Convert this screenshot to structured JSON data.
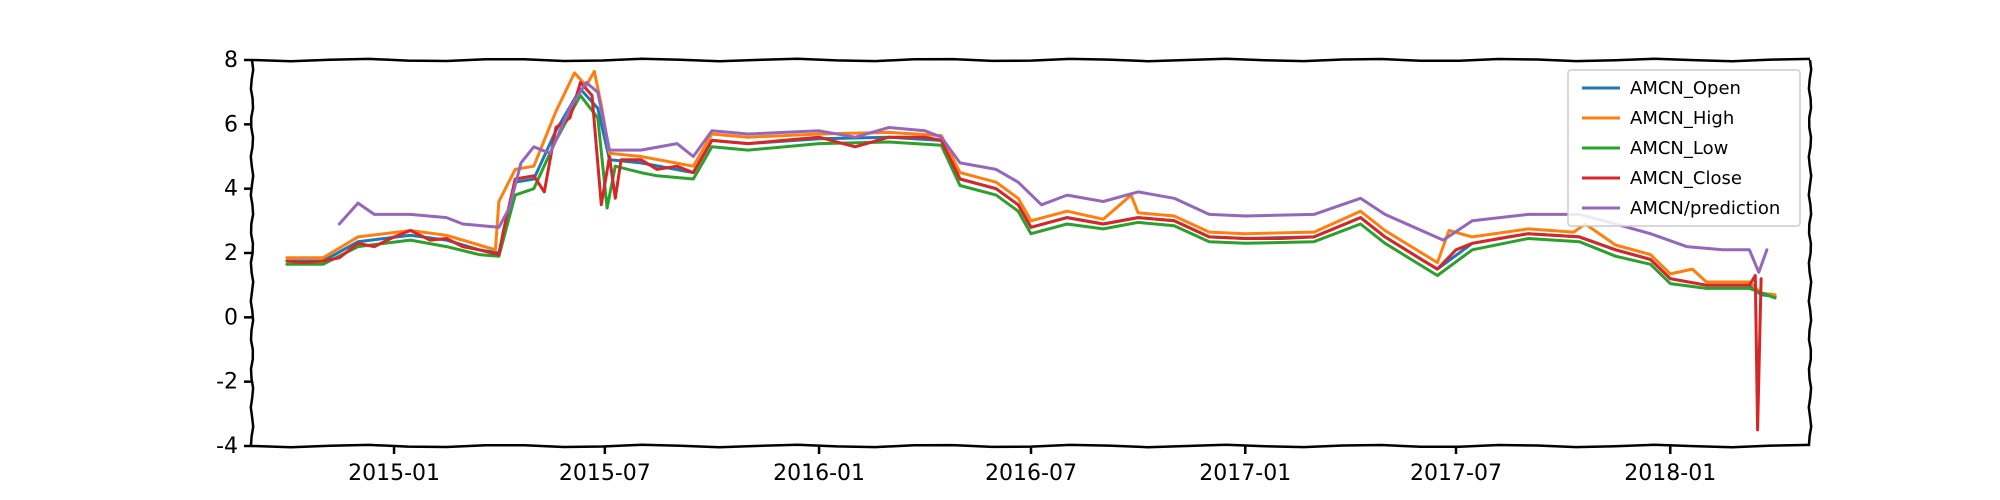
{
  "chart_data": {
    "type": "line",
    "title": "",
    "xlabel": "",
    "ylabel": "",
    "xlim": [
      "2014-09-01",
      "2018-05-01"
    ],
    "ylim": [
      -4,
      8
    ],
    "grid": false,
    "legend_position": "top-right",
    "x_ticks": [
      "2015-01",
      "2015-07",
      "2016-01",
      "2016-07",
      "2017-01",
      "2017-07",
      "2018-01"
    ],
    "y_ticks": [
      -4,
      -2,
      0,
      2,
      4,
      6,
      8
    ],
    "series": [
      {
        "name": "AMCN_Open",
        "color": "#1f77b4",
        "points": [
          [
            "2014-10-01",
            1.75
          ],
          [
            "2014-11-01",
            1.75
          ],
          [
            "2014-12-01",
            2.35
          ],
          [
            "2015-01-15",
            2.55
          ],
          [
            "2015-02-15",
            2.4
          ],
          [
            "2015-03-15",
            2.1
          ],
          [
            "2015-04-01",
            2.0
          ],
          [
            "2015-04-15",
            4.2
          ],
          [
            "2015-05-01",
            4.3
          ],
          [
            "2015-05-20",
            5.8
          ],
          [
            "2015-06-10",
            7.1
          ],
          [
            "2015-06-25",
            6.5
          ],
          [
            "2015-07-05",
            4.9
          ],
          [
            "2015-08-01",
            4.8
          ],
          [
            "2015-09-15",
            4.5
          ],
          [
            "2015-10-01",
            5.5
          ],
          [
            "2015-11-01",
            5.4
          ],
          [
            "2016-01-01",
            5.55
          ],
          [
            "2016-03-01",
            5.6
          ],
          [
            "2016-04-15",
            5.5
          ],
          [
            "2016-05-01",
            4.3
          ],
          [
            "2016-06-01",
            4.0
          ],
          [
            "2016-06-20",
            3.5
          ],
          [
            "2016-07-01",
            2.8
          ],
          [
            "2016-08-01",
            3.1
          ],
          [
            "2016-09-01",
            2.9
          ],
          [
            "2016-10-01",
            3.1
          ],
          [
            "2016-11-01",
            3.0
          ],
          [
            "2016-12-01",
            2.5
          ],
          [
            "2017-01-01",
            2.45
          ],
          [
            "2017-03-01",
            2.5
          ],
          [
            "2017-04-10",
            3.1
          ],
          [
            "2017-05-01",
            2.5
          ],
          [
            "2017-06-15",
            1.5
          ],
          [
            "2017-07-15",
            2.3
          ],
          [
            "2017-09-01",
            2.6
          ],
          [
            "2017-10-15",
            2.5
          ],
          [
            "2017-11-15",
            2.1
          ],
          [
            "2017-12-15",
            1.8
          ],
          [
            "2018-01-01",
            1.2
          ],
          [
            "2018-02-01",
            1.0
          ],
          [
            "2018-03-10",
            1.0
          ],
          [
            "2018-03-20",
            0.7
          ],
          [
            "2018-04-01",
            0.65
          ]
        ]
      },
      {
        "name": "AMCN_High",
        "color": "#ff7f0e",
        "points": [
          [
            "2014-10-01",
            1.85
          ],
          [
            "2014-11-01",
            1.85
          ],
          [
            "2014-12-01",
            2.5
          ],
          [
            "2015-01-15",
            2.7
          ],
          [
            "2015-02-15",
            2.55
          ],
          [
            "2015-03-15",
            2.25
          ],
          [
            "2015-03-29",
            2.1
          ],
          [
            "2015-04-01",
            3.6
          ],
          [
            "2015-04-15",
            4.6
          ],
          [
            "2015-05-01",
            4.7
          ],
          [
            "2015-05-20",
            6.4
          ],
          [
            "2015-06-05",
            7.6
          ],
          [
            "2015-06-15",
            7.2
          ],
          [
            "2015-06-22",
            7.65
          ],
          [
            "2015-06-28",
            6.6
          ],
          [
            "2015-07-05",
            5.1
          ],
          [
            "2015-08-01",
            5.0
          ],
          [
            "2015-09-15",
            4.7
          ],
          [
            "2015-10-01",
            5.7
          ],
          [
            "2015-11-01",
            5.6
          ],
          [
            "2016-01-01",
            5.7
          ],
          [
            "2016-03-01",
            5.75
          ],
          [
            "2016-04-15",
            5.65
          ],
          [
            "2016-05-01",
            4.5
          ],
          [
            "2016-06-01",
            4.2
          ],
          [
            "2016-06-20",
            3.7
          ],
          [
            "2016-07-01",
            3.0
          ],
          [
            "2016-08-01",
            3.3
          ],
          [
            "2016-09-01",
            3.05
          ],
          [
            "2016-09-25",
            3.8
          ],
          [
            "2016-10-01",
            3.25
          ],
          [
            "2016-11-01",
            3.15
          ],
          [
            "2016-12-01",
            2.65
          ],
          [
            "2017-01-01",
            2.6
          ],
          [
            "2017-03-01",
            2.65
          ],
          [
            "2017-04-10",
            3.3
          ],
          [
            "2017-05-01",
            2.7
          ],
          [
            "2017-06-15",
            1.7
          ],
          [
            "2017-06-25",
            2.7
          ],
          [
            "2017-07-15",
            2.5
          ],
          [
            "2017-09-01",
            2.75
          ],
          [
            "2017-10-10",
            2.65
          ],
          [
            "2017-10-20",
            2.9
          ],
          [
            "2017-11-15",
            2.25
          ],
          [
            "2017-12-15",
            1.95
          ],
          [
            "2018-01-01",
            1.35
          ],
          [
            "2018-01-20",
            1.5
          ],
          [
            "2018-02-01",
            1.1
          ],
          [
            "2018-03-10",
            1.1
          ],
          [
            "2018-03-20",
            0.75
          ],
          [
            "2018-04-01",
            0.7
          ]
        ]
      },
      {
        "name": "AMCN_Low",
        "color": "#2ca02c",
        "points": [
          [
            "2014-10-01",
            1.65
          ],
          [
            "2014-11-01",
            1.65
          ],
          [
            "2014-12-01",
            2.2
          ],
          [
            "2015-01-15",
            2.4
          ],
          [
            "2015-02-15",
            2.2
          ],
          [
            "2015-03-15",
            1.95
          ],
          [
            "2015-04-01",
            1.9
          ],
          [
            "2015-04-15",
            3.8
          ],
          [
            "2015-05-01",
            4.0
          ],
          [
            "2015-05-20",
            5.5
          ],
          [
            "2015-06-10",
            6.9
          ],
          [
            "2015-06-25",
            6.2
          ],
          [
            "2015-07-03",
            3.4
          ],
          [
            "2015-07-10",
            4.7
          ],
          [
            "2015-08-01",
            4.5
          ],
          [
            "2015-08-15",
            4.4
          ],
          [
            "2015-09-15",
            4.3
          ],
          [
            "2015-10-01",
            5.3
          ],
          [
            "2015-11-01",
            5.2
          ],
          [
            "2016-01-01",
            5.4
          ],
          [
            "2016-03-01",
            5.45
          ],
          [
            "2016-04-15",
            5.35
          ],
          [
            "2016-05-01",
            4.1
          ],
          [
            "2016-06-01",
            3.8
          ],
          [
            "2016-06-20",
            3.3
          ],
          [
            "2016-07-01",
            2.6
          ],
          [
            "2016-08-01",
            2.9
          ],
          [
            "2016-09-01",
            2.75
          ],
          [
            "2016-10-01",
            2.95
          ],
          [
            "2016-11-01",
            2.85
          ],
          [
            "2016-12-01",
            2.35
          ],
          [
            "2017-01-01",
            2.3
          ],
          [
            "2017-03-01",
            2.35
          ],
          [
            "2017-04-10",
            2.9
          ],
          [
            "2017-05-01",
            2.3
          ],
          [
            "2017-06-15",
            1.3
          ],
          [
            "2017-07-15",
            2.1
          ],
          [
            "2017-09-01",
            2.45
          ],
          [
            "2017-10-15",
            2.35
          ],
          [
            "2017-11-15",
            1.9
          ],
          [
            "2017-12-15",
            1.65
          ],
          [
            "2018-01-01",
            1.05
          ],
          [
            "2018-02-01",
            0.9
          ],
          [
            "2018-03-10",
            0.9
          ],
          [
            "2018-03-25",
            0.7
          ],
          [
            "2018-04-01",
            0.6
          ]
        ]
      },
      {
        "name": "AMCN_Close",
        "color": "#d62728",
        "points": [
          [
            "2014-10-01",
            1.75
          ],
          [
            "2014-10-15",
            1.7
          ],
          [
            "2014-11-01",
            1.75
          ],
          [
            "2014-11-15",
            1.85
          ],
          [
            "2014-12-01",
            2.3
          ],
          [
            "2014-12-15",
            2.2
          ],
          [
            "2015-01-01",
            2.5
          ],
          [
            "2015-01-15",
            2.7
          ],
          [
            "2015-02-01",
            2.4
          ],
          [
            "2015-02-15",
            2.45
          ],
          [
            "2015-03-01",
            2.2
          ],
          [
            "2015-03-15",
            2.1
          ],
          [
            "2015-04-01",
            1.95
          ],
          [
            "2015-04-05",
            2.7
          ],
          [
            "2015-04-15",
            4.3
          ],
          [
            "2015-05-01",
            4.4
          ],
          [
            "2015-05-10",
            3.9
          ],
          [
            "2015-05-20",
            5.9
          ],
          [
            "2015-06-01",
            6.2
          ],
          [
            "2015-06-10",
            7.3
          ],
          [
            "2015-06-20",
            6.9
          ],
          [
            "2015-06-28",
            3.5
          ],
          [
            "2015-07-05",
            5.0
          ],
          [
            "2015-07-10",
            3.7
          ],
          [
            "2015-07-15",
            4.9
          ],
          [
            "2015-08-01",
            4.9
          ],
          [
            "2015-08-15",
            4.6
          ],
          [
            "2015-09-01",
            4.7
          ],
          [
            "2015-09-15",
            4.5
          ],
          [
            "2015-10-01",
            5.5
          ],
          [
            "2015-11-01",
            5.4
          ],
          [
            "2015-12-01",
            5.5
          ],
          [
            "2016-01-01",
            5.6
          ],
          [
            "2016-02-01",
            5.3
          ],
          [
            "2016-03-01",
            5.6
          ],
          [
            "2016-04-01",
            5.6
          ],
          [
            "2016-04-15",
            5.5
          ],
          [
            "2016-05-01",
            4.3
          ],
          [
            "2016-06-01",
            4.0
          ],
          [
            "2016-06-20",
            3.5
          ],
          [
            "2016-07-01",
            2.8
          ],
          [
            "2016-08-01",
            3.1
          ],
          [
            "2016-09-01",
            2.9
          ],
          [
            "2016-10-01",
            3.1
          ],
          [
            "2016-11-01",
            3.0
          ],
          [
            "2016-12-01",
            2.5
          ],
          [
            "2017-01-01",
            2.45
          ],
          [
            "2017-02-01",
            2.45
          ],
          [
            "2017-03-01",
            2.5
          ],
          [
            "2017-04-10",
            3.1
          ],
          [
            "2017-05-01",
            2.5
          ],
          [
            "2017-06-01",
            1.8
          ],
          [
            "2017-06-15",
            1.5
          ],
          [
            "2017-07-01",
            2.1
          ],
          [
            "2017-07-15",
            2.3
          ],
          [
            "2017-08-15",
            2.5
          ],
          [
            "2017-09-01",
            2.6
          ],
          [
            "2017-10-15",
            2.5
          ],
          [
            "2017-11-15",
            2.1
          ],
          [
            "2017-12-15",
            1.8
          ],
          [
            "2018-01-01",
            1.2
          ],
          [
            "2018-02-01",
            1.0
          ],
          [
            "2018-03-10",
            1.0
          ],
          [
            "2018-03-15",
            1.3
          ],
          [
            "2018-03-17",
            -3.5
          ],
          [
            "2018-03-20",
            1.2
          ]
        ]
      },
      {
        "name": "AMCN/prediction",
        "color": "#9467bd",
        "points": [
          [
            "2014-11-15",
            2.9
          ],
          [
            "2014-12-01",
            3.55
          ],
          [
            "2014-12-15",
            3.2
          ],
          [
            "2015-01-15",
            3.2
          ],
          [
            "2015-02-15",
            3.1
          ],
          [
            "2015-03-01",
            2.9
          ],
          [
            "2015-04-01",
            2.8
          ],
          [
            "2015-04-10",
            3.4
          ],
          [
            "2015-04-20",
            4.8
          ],
          [
            "2015-05-01",
            5.3
          ],
          [
            "2015-05-15",
            5.1
          ],
          [
            "2015-06-01",
            6.5
          ],
          [
            "2015-06-15",
            7.3
          ],
          [
            "2015-06-25",
            7.0
          ],
          [
            "2015-07-05",
            5.2
          ],
          [
            "2015-08-01",
            5.2
          ],
          [
            "2015-09-01",
            5.4
          ],
          [
            "2015-09-15",
            5.0
          ],
          [
            "2015-10-01",
            5.8
          ],
          [
            "2015-11-01",
            5.7
          ],
          [
            "2016-01-01",
            5.8
          ],
          [
            "2016-02-01",
            5.6
          ],
          [
            "2016-03-01",
            5.9
          ],
          [
            "2016-04-01",
            5.8
          ],
          [
            "2016-04-15",
            5.6
          ],
          [
            "2016-05-01",
            4.8
          ],
          [
            "2016-06-01",
            4.6
          ],
          [
            "2016-06-20",
            4.2
          ],
          [
            "2016-07-10",
            3.5
          ],
          [
            "2016-08-01",
            3.8
          ],
          [
            "2016-09-01",
            3.6
          ],
          [
            "2016-10-01",
            3.9
          ],
          [
            "2016-11-01",
            3.7
          ],
          [
            "2016-12-01",
            3.2
          ],
          [
            "2017-01-01",
            3.15
          ],
          [
            "2017-03-01",
            3.2
          ],
          [
            "2017-04-10",
            3.7
          ],
          [
            "2017-05-01",
            3.2
          ],
          [
            "2017-06-20",
            2.4
          ],
          [
            "2017-07-15",
            3.0
          ],
          [
            "2017-09-01",
            3.2
          ],
          [
            "2017-10-15",
            3.2
          ],
          [
            "2017-11-15",
            2.9
          ],
          [
            "2017-12-15",
            2.6
          ],
          [
            "2018-01-15",
            2.2
          ],
          [
            "2018-02-15",
            2.1
          ],
          [
            "2018-03-10",
            2.1
          ],
          [
            "2018-03-18",
            1.4
          ],
          [
            "2018-03-25",
            2.1
          ]
        ]
      }
    ]
  }
}
